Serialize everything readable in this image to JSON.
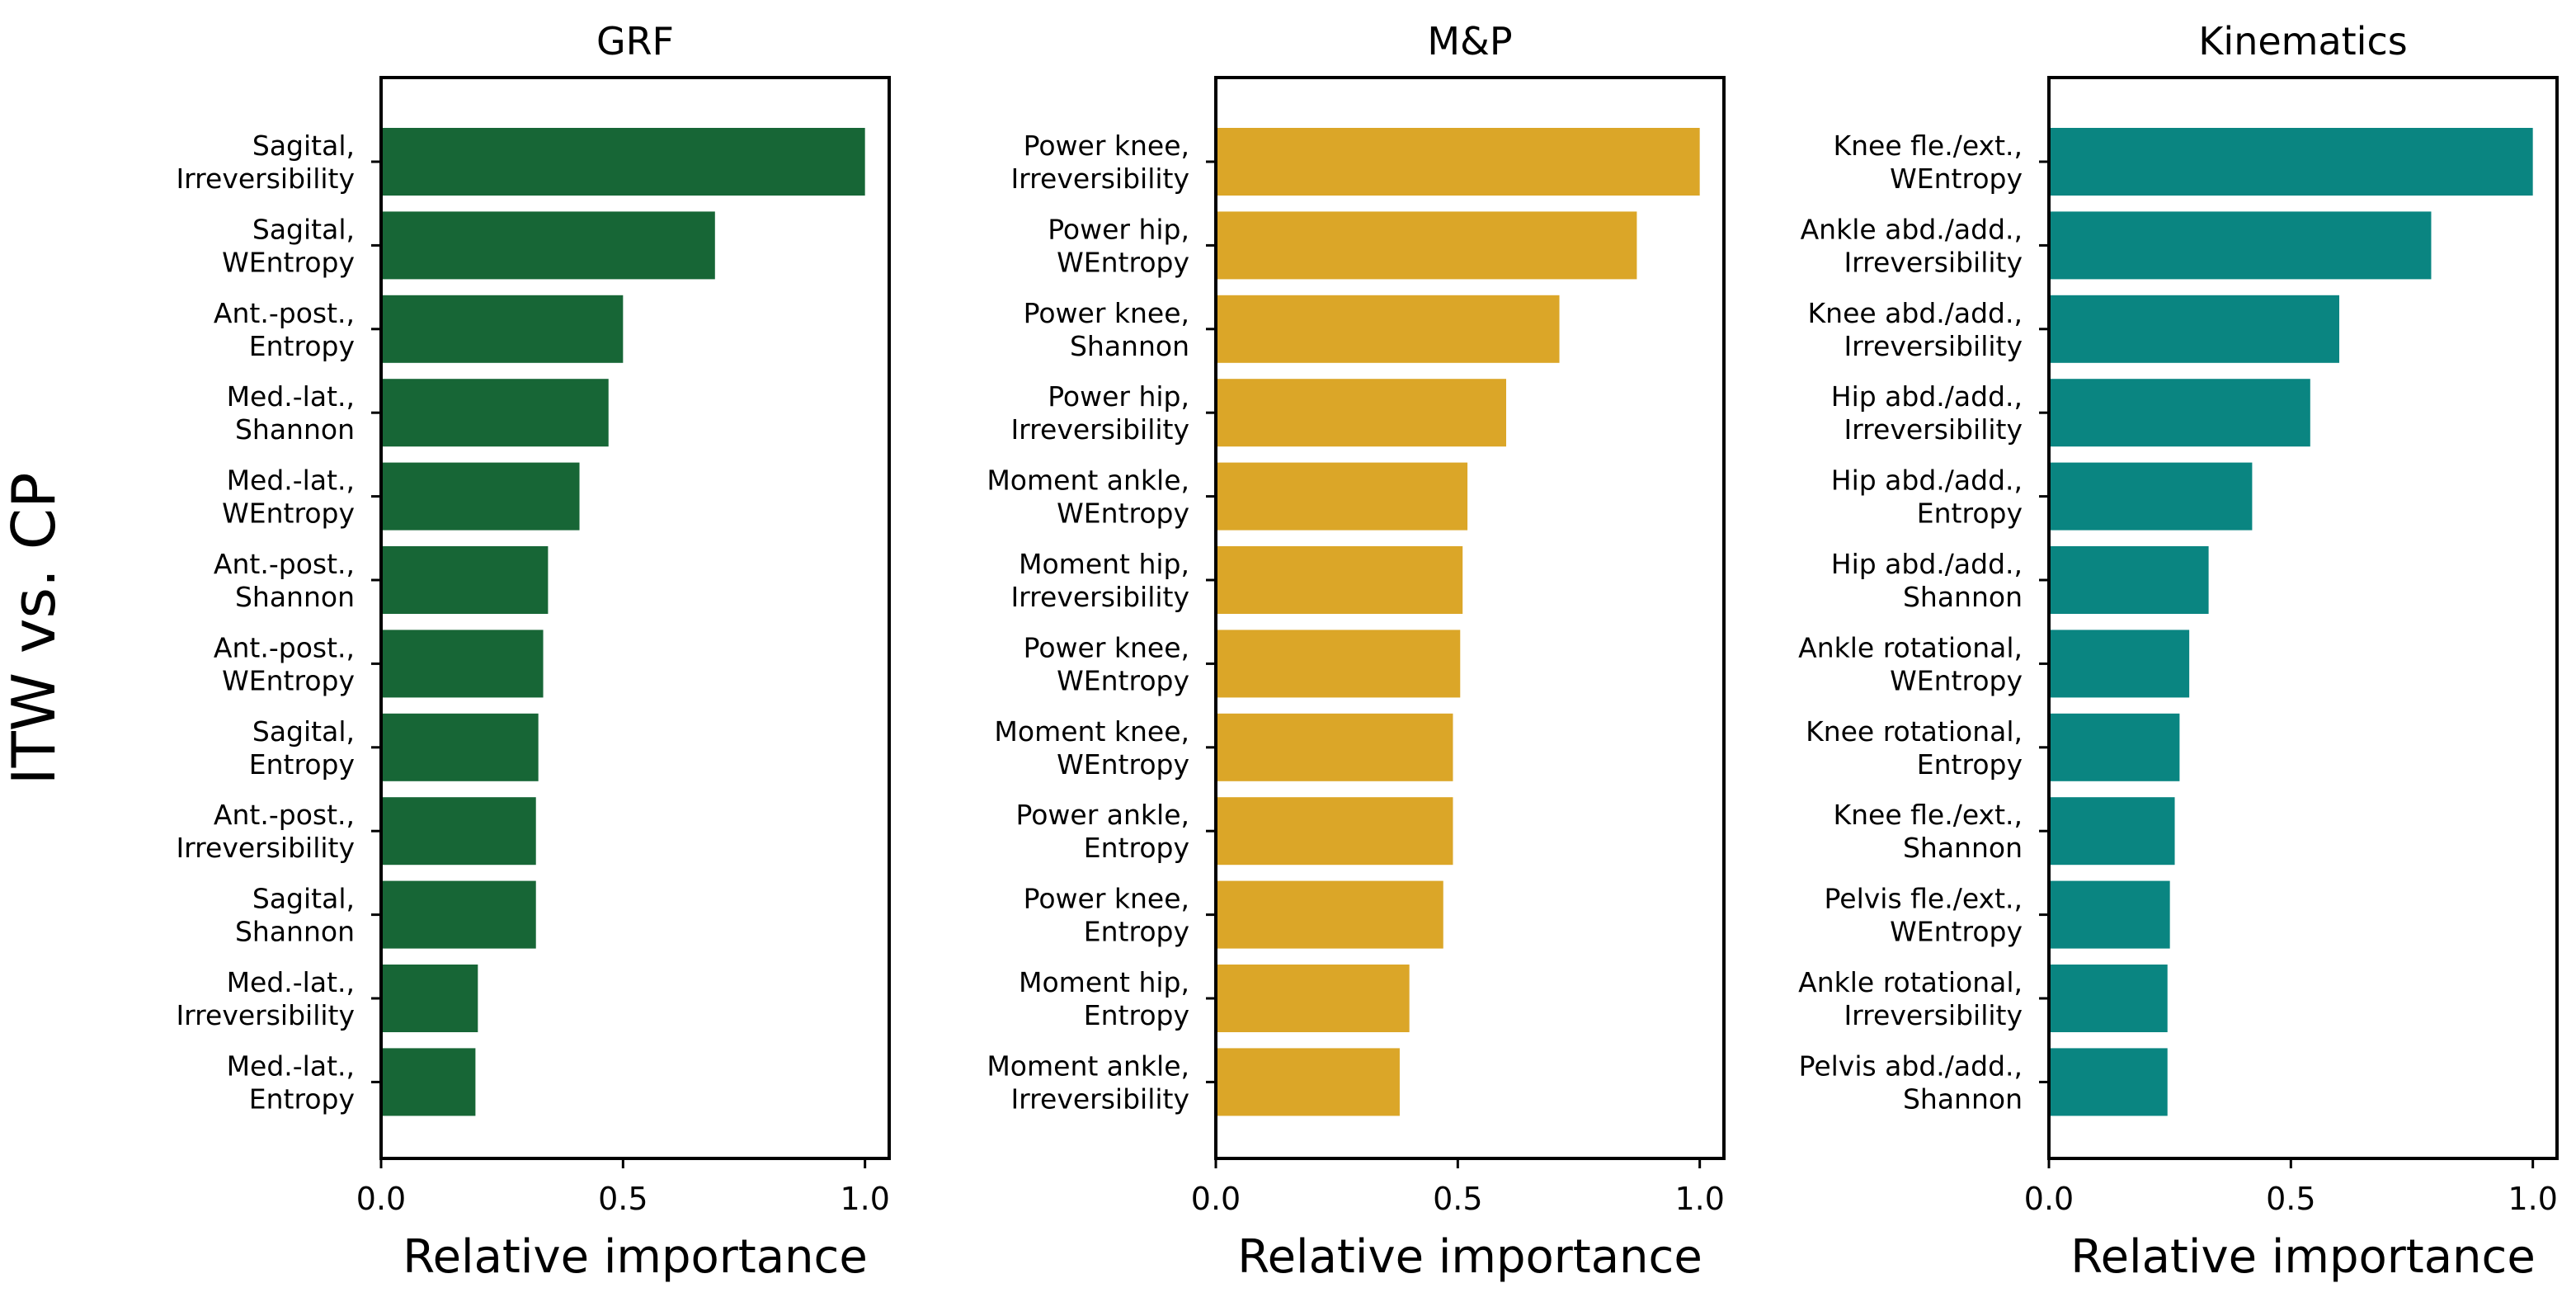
{
  "figure": {
    "ylabel": "ITW vs. CP"
  },
  "chart_data": [
    {
      "type": "bar",
      "orientation": "horizontal",
      "title": "GRF",
      "xlabel": "Relative importance",
      "ylabel": "",
      "xlim": [
        0,
        1.05
      ],
      "xticks": [
        "0.0",
        "0.5",
        "1.0"
      ],
      "color": "#176636",
      "categories": [
        [
          "Sagital,",
          "Irreversibility"
        ],
        [
          "Sagital,",
          "WEntropy"
        ],
        [
          "Ant.-post.,",
          "Entropy"
        ],
        [
          "Med.-lat.,",
          "Shannon"
        ],
        [
          "Med.-lat.,",
          "WEntropy"
        ],
        [
          "Ant.-post.,",
          "Shannon"
        ],
        [
          "Ant.-post.,",
          "WEntropy"
        ],
        [
          "Sagital,",
          "Entropy"
        ],
        [
          "Ant.-post.,",
          "Irreversibility"
        ],
        [
          "Sagital,",
          "Shannon"
        ],
        [
          "Med.-lat.,",
          "Irreversibility"
        ],
        [
          "Med.-lat.,",
          "Entropy"
        ]
      ],
      "values": [
        1.0,
        0.69,
        0.5,
        0.47,
        0.41,
        0.345,
        0.335,
        0.325,
        0.32,
        0.32,
        0.2,
        0.195
      ]
    },
    {
      "type": "bar",
      "orientation": "horizontal",
      "title": "M&P",
      "xlabel": "Relative importance",
      "ylabel": "",
      "xlim": [
        0,
        1.05
      ],
      "xticks": [
        "0.0",
        "0.5",
        "1.0"
      ],
      "color": "#DBA628",
      "categories": [
        [
          "Power knee,",
          "Irreversibility"
        ],
        [
          "Power hip,",
          "WEntropy"
        ],
        [
          "Power knee,",
          "Shannon"
        ],
        [
          "Power hip,",
          "Irreversibility"
        ],
        [
          "Moment ankle,",
          "WEntropy"
        ],
        [
          "Moment hip,",
          "Irreversibility"
        ],
        [
          "Power knee,",
          "WEntropy"
        ],
        [
          "Moment knee,",
          "WEntropy"
        ],
        [
          "Power ankle,",
          "Entropy"
        ],
        [
          "Power knee,",
          "Entropy"
        ],
        [
          "Moment hip,",
          "Entropy"
        ],
        [
          "Moment ankle,",
          "Irreversibility"
        ]
      ],
      "values": [
        1.0,
        0.87,
        0.71,
        0.6,
        0.52,
        0.51,
        0.505,
        0.49,
        0.49,
        0.47,
        0.4,
        0.38
      ]
    },
    {
      "type": "bar",
      "orientation": "horizontal",
      "title": "Kinematics",
      "xlabel": "Relative importance",
      "ylabel": "",
      "xlim": [
        0,
        1.05
      ],
      "xticks": [
        "0.0",
        "0.5",
        "1.0"
      ],
      "color": "#0A8581",
      "categories": [
        [
          "Knee fle./ext.,",
          "WEntropy"
        ],
        [
          "Ankle abd./add.,",
          "Irreversibility"
        ],
        [
          "Knee abd./add.,",
          "Irreversibility"
        ],
        [
          "Hip abd./add.,",
          "Irreversibility"
        ],
        [
          "Hip abd./add.,",
          "Entropy"
        ],
        [
          "Hip abd./add.,",
          "Shannon"
        ],
        [
          "Ankle rotational,",
          "WEntropy"
        ],
        [
          "Knee rotational,",
          "Entropy"
        ],
        [
          "Knee fle./ext.,",
          "Shannon"
        ],
        [
          "Pelvis fle./ext.,",
          "WEntropy"
        ],
        [
          "Ankle rotational,",
          "Irreversibility"
        ],
        [
          "Pelvis abd./add.,",
          "Shannon"
        ]
      ],
      "values": [
        1.0,
        0.79,
        0.6,
        0.54,
        0.42,
        0.33,
        0.29,
        0.27,
        0.26,
        0.25,
        0.245,
        0.245
      ]
    }
  ]
}
